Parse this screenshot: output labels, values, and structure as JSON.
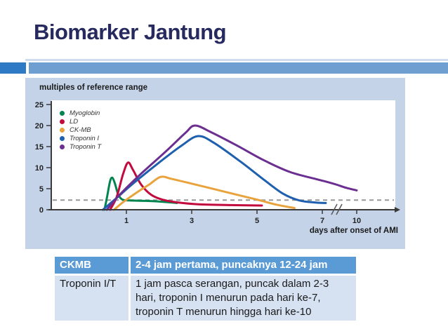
{
  "slide": {
    "title": "Biomarker Jantung"
  },
  "chart_data": {
    "type": "line",
    "title": "multiples of reference range",
    "xlabel": "days after onset of AMI",
    "ylabel": "multiples of reference range",
    "ylim": [
      0,
      25
    ],
    "yticks": [
      0,
      5,
      10,
      15,
      20,
      25
    ],
    "xticks": [
      1,
      3,
      5,
      7,
      10
    ],
    "axis_break_between": [
      7,
      10
    ],
    "reference_line": 2.3,
    "grid": false,
    "legend_position": "top-left",
    "x_units": "days",
    "series": [
      {
        "name": "Myoglobin",
        "color": "#00854f",
        "points": [
          [
            0.33,
            0
          ],
          [
            0.42,
            3.5
          ],
          [
            0.5,
            6.8
          ],
          [
            0.57,
            7.6
          ],
          [
            0.65,
            6.2
          ],
          [
            0.75,
            3.6
          ],
          [
            0.88,
            2.4
          ],
          [
            1.1,
            2.2
          ],
          [
            1.6,
            2.1
          ],
          [
            2.1,
            1.9
          ],
          [
            2.55,
            1.6
          ]
        ]
      },
      {
        "name": "LD",
        "color": "#c20a3c",
        "points": [
          [
            0.5,
            0
          ],
          [
            0.7,
            3
          ],
          [
            0.9,
            8.5
          ],
          [
            1.05,
            11.2
          ],
          [
            1.2,
            9.5
          ],
          [
            1.45,
            6
          ],
          [
            1.75,
            3.6
          ],
          [
            2.1,
            2.4
          ],
          [
            2.6,
            1.7
          ],
          [
            3.2,
            1.3
          ],
          [
            4.2,
            1.1
          ],
          [
            5.15,
            1.0
          ]
        ]
      },
      {
        "name": "CK-MB",
        "color": "#e8a33c",
        "points": [
          [
            0.62,
            0
          ],
          [
            0.9,
            1.8
          ],
          [
            1.3,
            4.0
          ],
          [
            1.7,
            6.0
          ],
          [
            2.05,
            7.8
          ],
          [
            2.4,
            7.3
          ],
          [
            3.0,
            6.2
          ],
          [
            4.0,
            4.3
          ],
          [
            5.0,
            2.4
          ],
          [
            5.6,
            1.2
          ],
          [
            6.15,
            0.4
          ]
        ]
      },
      {
        "name": "Troponin I",
        "color": "#1e5fae",
        "points": [
          [
            0.28,
            0
          ],
          [
            0.7,
            2.8
          ],
          [
            1.2,
            6.2
          ],
          [
            2.0,
            11.2
          ],
          [
            2.7,
            15.3
          ],
          [
            3.2,
            17.5
          ],
          [
            3.7,
            15.8
          ],
          [
            4.5,
            11.4
          ],
          [
            5.2,
            7.2
          ],
          [
            5.8,
            3.8
          ],
          [
            6.3,
            2.2
          ],
          [
            6.8,
            1.7
          ],
          [
            7.3,
            1.6
          ]
        ]
      },
      {
        "name": "Troponin T",
        "color": "#6b2e91",
        "points": [
          [
            0.4,
            0
          ],
          [
            0.8,
            3.6
          ],
          [
            1.4,
            8.2
          ],
          [
            2.2,
            13.8
          ],
          [
            2.8,
            18.2
          ],
          [
            3.1,
            20
          ],
          [
            3.6,
            18.4
          ],
          [
            4.4,
            15.2
          ],
          [
            5.2,
            11.8
          ],
          [
            6.0,
            9.0
          ],
          [
            6.8,
            7.3
          ],
          [
            7.3,
            6.7
          ],
          [
            8.2,
            6.0
          ],
          [
            9.1,
            5.2
          ],
          [
            10,
            4.6
          ]
        ]
      }
    ]
  },
  "table": {
    "rows": [
      {
        "label": "CKMB",
        "text": "2-4 jam pertama, puncaknya 12-24 jam"
      },
      {
        "label": "Troponin I/T",
        "text": "1 jam pasca serangan, puncak dalam 2-3 hari, troponin I menurun pada hari ke-7, troponin T menurun hingga hari ke-10"
      }
    ]
  }
}
